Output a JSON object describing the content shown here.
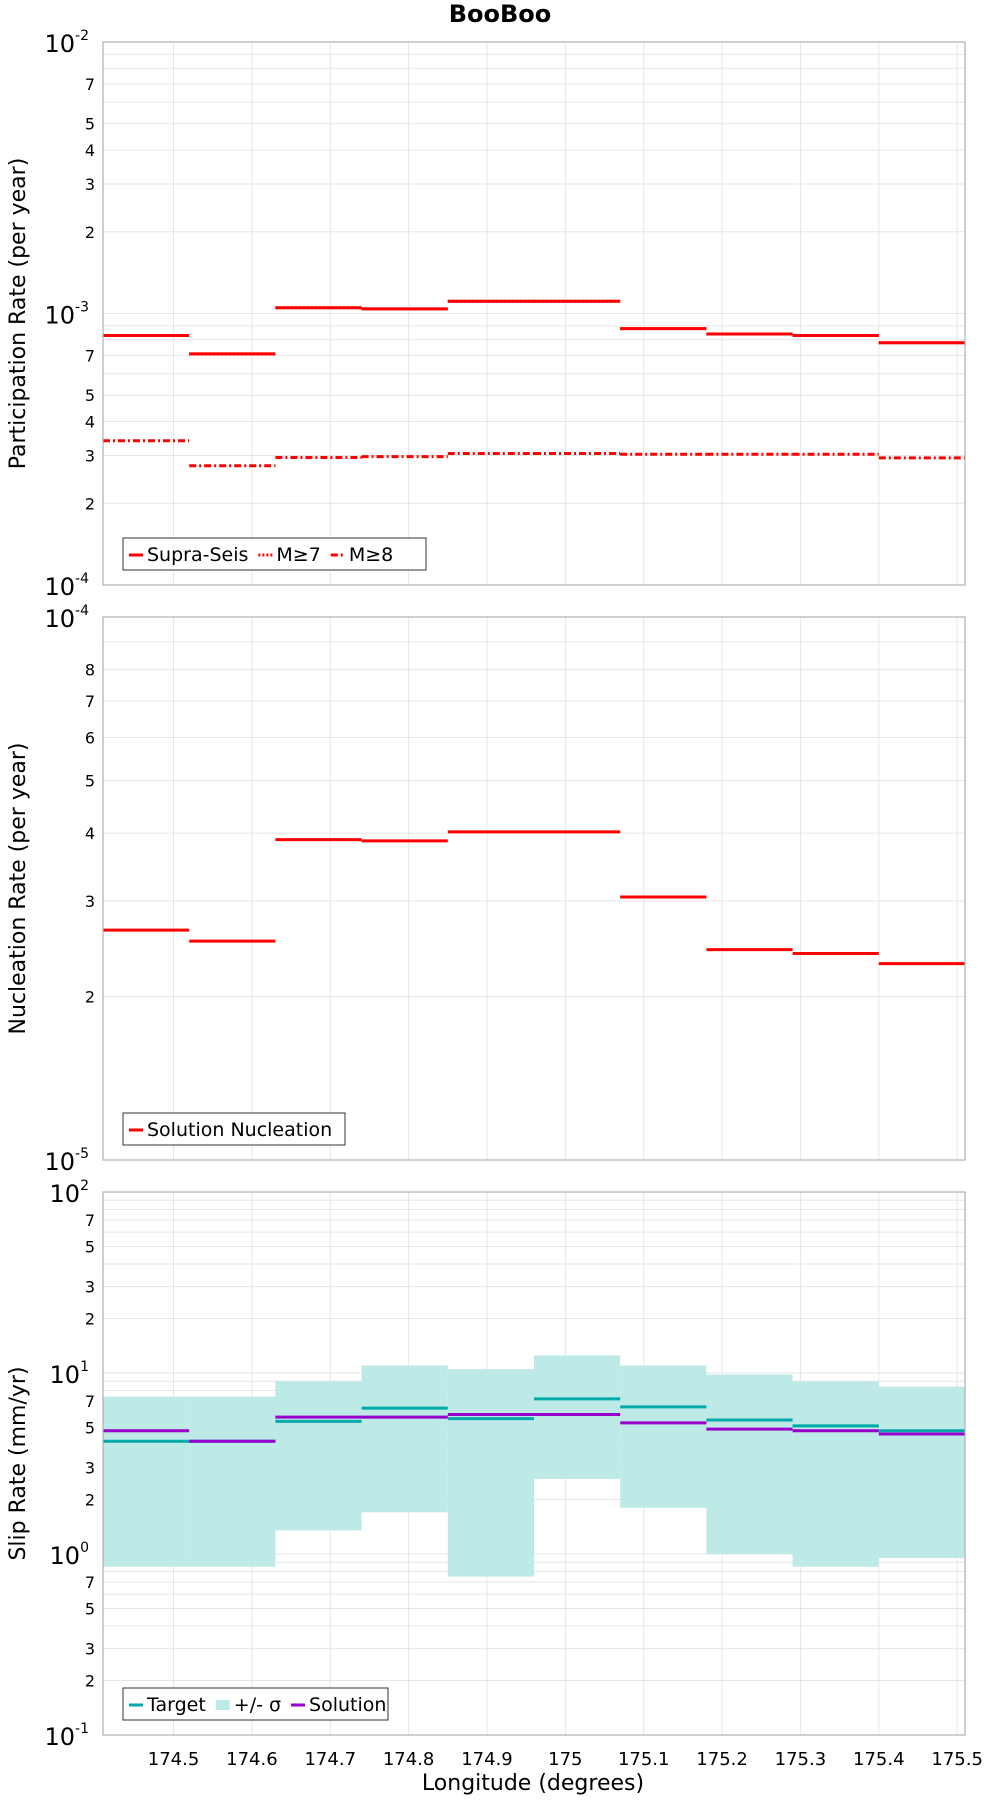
{
  "title": "BooBoo",
  "xlabel": "Longitude (degrees)",
  "x_ticks": [
    "174.5",
    "174.6",
    "174.7",
    "174.8",
    "174.9",
    "175",
    "175.1",
    "175.2",
    "175.3",
    "175.4",
    "175.5"
  ],
  "x_tick_values": [
    174.5,
    174.6,
    174.7,
    174.8,
    174.9,
    175.0,
    175.1,
    175.2,
    175.3,
    175.4,
    175.5
  ],
  "colors": {
    "red": "#ff0000",
    "target": "#00aaaa",
    "band": "#bde9e7",
    "solution": "#9900cc",
    "grid": "#e6e6e6",
    "frame": "#b0b0b0"
  },
  "chart_data": [
    {
      "type": "line",
      "title": "BooBoo",
      "ylabel": "Participation Rate (per year)",
      "xlabel": "",
      "xlim": [
        174.41,
        175.51
      ],
      "ylim": [
        0.0001,
        0.01
      ],
      "yscale": "log",
      "grid": true,
      "legend_position": "bottom-left",
      "y_major_ticks": [
        {
          "base": "10",
          "exp": "-4"
        },
        {
          "base": "10",
          "exp": "-3"
        },
        {
          "base": "10",
          "exp": "-2"
        }
      ],
      "y_minor_ticks": [
        "2",
        "3",
        "4",
        "5",
        "7"
      ],
      "bin_edges": [
        174.41,
        174.52,
        174.63,
        174.74,
        174.85,
        174.96,
        175.07,
        175.18,
        175.29,
        175.4,
        175.51
      ],
      "series": [
        {
          "name": "Supra-Seis",
          "style": "solid",
          "values": [
            0.00083,
            0.00071,
            0.00105,
            0.00104,
            0.00111,
            0.00111,
            0.00088,
            0.00084,
            0.00083,
            0.00078
          ]
        },
        {
          "name": "M≥7",
          "style": "dotted",
          "values": [
            0.00083,
            0.00071,
            0.00105,
            0.00104,
            0.00111,
            0.00111,
            0.00088,
            0.00084,
            0.00083,
            0.00078
          ]
        },
        {
          "name": "M≥8",
          "style": "dashdot",
          "values": [
            0.00034,
            0.000275,
            0.000295,
            0.000297,
            0.000305,
            0.000305,
            0.000303,
            0.000303,
            0.000303,
            0.000294
          ]
        }
      ]
    },
    {
      "type": "line",
      "ylabel": "Nucleation Rate (per year)",
      "xlabel": "",
      "xlim": [
        174.41,
        175.51
      ],
      "ylim": [
        1e-05,
        0.0001
      ],
      "yscale": "log",
      "grid": true,
      "legend_position": "bottom-left",
      "y_major_ticks": [
        {
          "base": "10",
          "exp": "-5"
        },
        {
          "base": "10",
          "exp": "-4"
        }
      ],
      "y_minor_ticks": [
        "2",
        "3",
        "4",
        "5",
        "6",
        "7",
        "8"
      ],
      "bin_edges": [
        174.41,
        174.52,
        174.63,
        174.74,
        174.85,
        174.96,
        175.07,
        175.18,
        175.29,
        175.4,
        175.51
      ],
      "series": [
        {
          "name": "Solution Nucleation",
          "style": "solid",
          "values": [
            2.65e-05,
            2.53e-05,
            3.89e-05,
            3.87e-05,
            4.02e-05,
            4.02e-05,
            3.05e-05,
            2.44e-05,
            2.4e-05,
            2.3e-05
          ]
        }
      ]
    },
    {
      "type": "line",
      "ylabel": "Slip Rate (mm/yr)",
      "xlabel": "Longitude (degrees)",
      "xlim": [
        174.41,
        175.51
      ],
      "ylim": [
        0.1,
        100
      ],
      "yscale": "log",
      "grid": true,
      "legend_position": "bottom-left",
      "y_major_ticks": [
        {
          "base": "10",
          "exp": "-1"
        },
        {
          "base": "10",
          "exp": "0"
        },
        {
          "base": "10",
          "exp": "1"
        },
        {
          "base": "10",
          "exp": "2"
        }
      ],
      "y_minor_ticks": [
        "2",
        "3",
        "5",
        "7"
      ],
      "bin_edges": [
        174.41,
        174.52,
        174.63,
        174.74,
        174.85,
        174.96,
        175.07,
        175.18,
        175.29,
        175.4,
        175.51
      ],
      "band": {
        "name": "+/- σ",
        "upper": [
          7.4,
          7.4,
          9.0,
          11.0,
          10.5,
          12.5,
          11.0,
          9.8,
          9.0,
          8.4
        ],
        "lower": [
          0.85,
          0.85,
          1.35,
          1.7,
          0.75,
          2.6,
          1.8,
          1.0,
          0.85,
          0.95
        ]
      },
      "series": [
        {
          "name": "Target",
          "style": "solid",
          "values": [
            4.2,
            4.2,
            5.4,
            6.4,
            5.6,
            7.2,
            6.5,
            5.5,
            5.1,
            4.8
          ]
        },
        {
          "name": "Solution",
          "style": "solid",
          "values": [
            4.8,
            4.2,
            5.7,
            5.7,
            5.9,
            5.9,
            5.3,
            4.9,
            4.8,
            4.6
          ]
        }
      ]
    }
  ]
}
